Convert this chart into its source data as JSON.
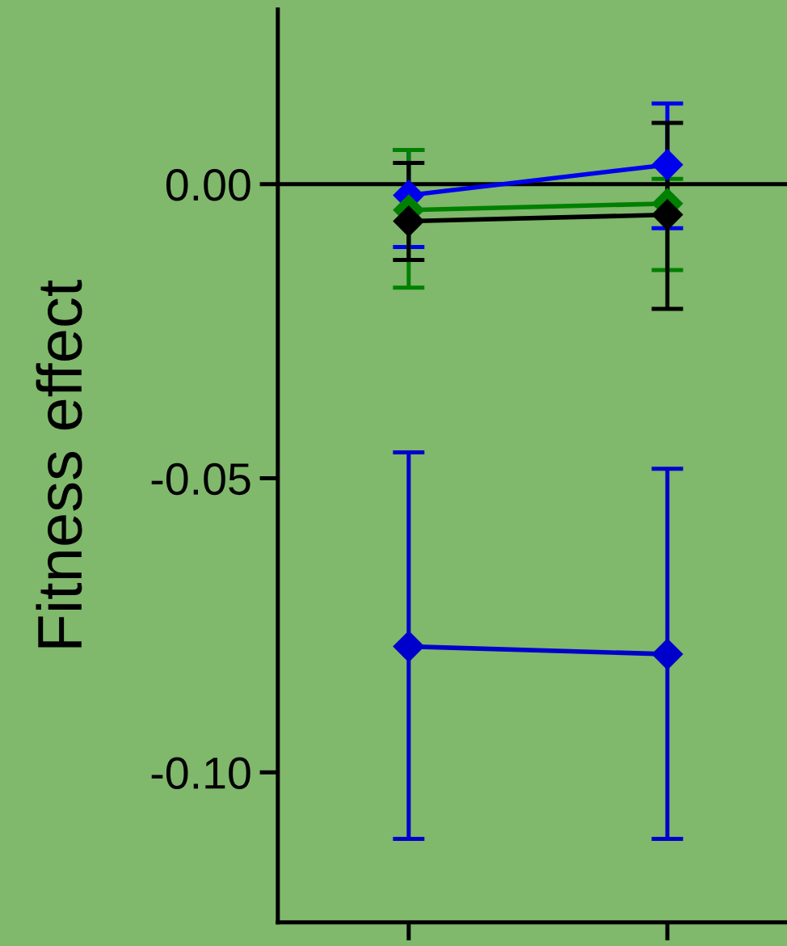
{
  "chart_data": {
    "type": "line",
    "ylabel": "Fitness effect",
    "categories": [
      null,
      null
    ],
    "series": [
      {
        "color": "#0000ee",
        "values": [
          -0.0019,
          0.0033
        ],
        "errors": [
          [
            -0.0107,
            0.0058
          ],
          [
            -0.0075,
            0.0137
          ]
        ]
      },
      {
        "color": "#008000",
        "values": [
          -0.0044,
          -0.0033
        ],
        "errors": [
          [
            -0.0176,
            0.0058
          ],
          [
            -0.0146,
            0.0009
          ]
        ]
      },
      {
        "color": "#000000",
        "values": [
          -0.0063,
          -0.0052
        ],
        "errors": [
          [
            -0.0129,
            0.0036
          ],
          [
            -0.0212,
            0.0104
          ]
        ]
      },
      {
        "color": "#0000cc",
        "values": [
          -0.0786,
          -0.0799
        ],
        "errors": [
          [
            -0.1113,
            -0.0456
          ],
          [
            -0.1113,
            -0.0484
          ]
        ]
      }
    ],
    "ylim": [
      -0.1255,
      0.0297
    ],
    "yticks": [
      {
        "value": 0,
        "label": "0.00"
      },
      {
        "value": -0.05,
        "label": "-0.05"
      },
      {
        "value": -0.1,
        "label": "-0.10"
      }
    ],
    "ref_lines": [
      {
        "axis": "y",
        "value": 0,
        "color": "#000000"
      }
    ],
    "marker": "diamond",
    "line_style": "solid",
    "grid": false,
    "tick_labels": "y"
  }
}
